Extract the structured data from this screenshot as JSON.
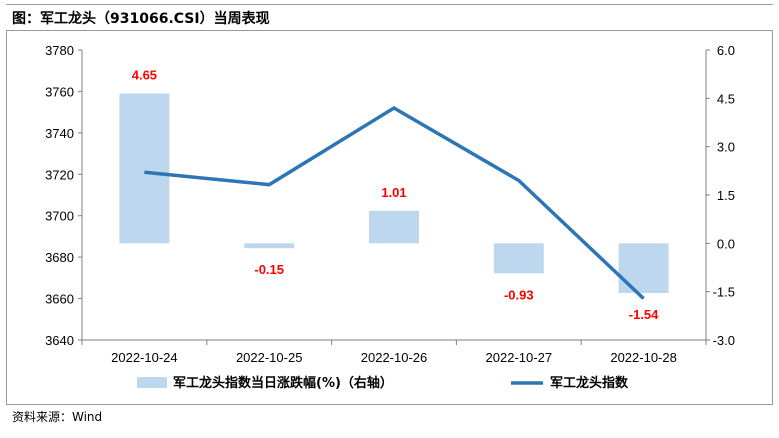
{
  "figure": {
    "title": "图：军工龙头（931066.CSI）当周表现",
    "source": "资料来源：Wind"
  },
  "colors": {
    "bar": "#bdd7ee",
    "line": "#2e75b6",
    "data_label": "#ff0000",
    "frame": "#9a9a9a"
  },
  "chart_data": {
    "type": "bar+line",
    "categories": [
      "2022-10-24",
      "2022-10-25",
      "2022-10-26",
      "2022-10-27",
      "2022-10-28"
    ],
    "series": [
      {
        "name": "军工龙头指数当日涨跌幅(%)（右轴）",
        "type": "bar",
        "axis": "right",
        "values": [
          4.65,
          -0.15,
          1.01,
          -0.93,
          -1.54
        ],
        "labels": [
          "4.65",
          "-0.15",
          "1.01",
          "-0.93",
          "-1.54"
        ]
      },
      {
        "name": "军工龙头指数",
        "type": "line",
        "axis": "left",
        "values": [
          3721,
          3715,
          3752,
          3717,
          3660
        ]
      }
    ],
    "y_left": {
      "min": 3640,
      "max": 3780,
      "step": 20,
      "ticks": [
        "3640",
        "3660",
        "3680",
        "3700",
        "3720",
        "3740",
        "3760",
        "3780"
      ]
    },
    "y_right": {
      "min": -3.0,
      "max": 6.0,
      "step": 1.5,
      "ticks": [
        "-3.0",
        "-1.5",
        "0.0",
        "1.5",
        "3.0",
        "4.5",
        "6.0"
      ]
    },
    "grid": false,
    "legend_position": "bottom"
  }
}
